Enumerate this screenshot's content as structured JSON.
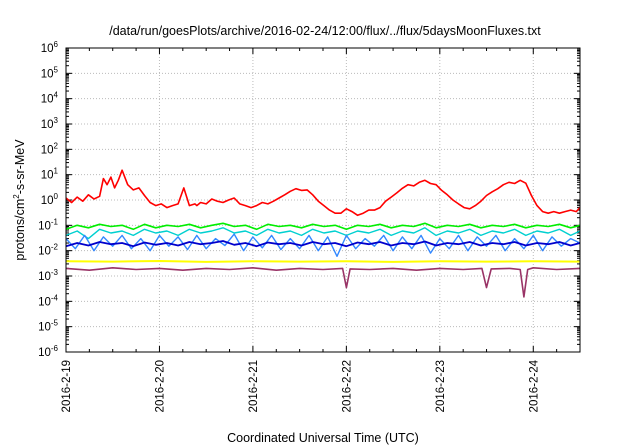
{
  "chart_data": {
    "type": "line",
    "title": "/data/run/goesPlots/archive/2016-02-24/12:00/flux/../flux/5daysMoonFluxes.txt",
    "xlabel": "Coordinated Universal Time (UTC)",
    "ylabel": {
      "prefix": "protons/cm",
      "sup": "2",
      "suffix": "-s-sr-MeV"
    },
    "yscale": "log",
    "ylim": [
      1e-06,
      1000000.0
    ],
    "y_tick_exponents": [
      -6,
      -5,
      -4,
      -3,
      -2,
      -1,
      0,
      1,
      2,
      3,
      4,
      5,
      6
    ],
    "x_range": [
      "2016-02-19T00:00",
      "2016-02-24T12:00"
    ],
    "x_tick_labels": [
      "2016-2-19",
      "2016-2-20",
      "2016-2-21",
      "2016-2-22",
      "2016-2-23",
      "2016-2-24"
    ],
    "grid": true,
    "series": [
      {
        "color": "#ff0000",
        "width": 1.6,
        "x": [
          0,
          0.06,
          0.12,
          0.18,
          0.24,
          0.3,
          0.36,
          0.4,
          0.44,
          0.48,
          0.52,
          0.56,
          0.6,
          0.66,
          0.72,
          0.78,
          0.84,
          0.9,
          0.96,
          1.02,
          1.08,
          1.14,
          1.2,
          1.26,
          1.32,
          1.38,
          1.4,
          1.44,
          1.5,
          1.56,
          1.62,
          1.68,
          1.74,
          1.8,
          1.86,
          1.92,
          1.98,
          2.04,
          2.1,
          2.16,
          2.22,
          2.28,
          2.34,
          2.4,
          2.46,
          2.52,
          2.58,
          2.64,
          2.7,
          2.76,
          2.82,
          2.88,
          2.94,
          3.0,
          3.06,
          3.12,
          3.18,
          3.24,
          3.3,
          3.36,
          3.42,
          3.48,
          3.54,
          3.6,
          3.66,
          3.72,
          3.78,
          3.84,
          3.9,
          3.96,
          4.02,
          4.08,
          4.14,
          4.2,
          4.26,
          4.32,
          4.38,
          4.44,
          4.5,
          4.56,
          4.62,
          4.68,
          4.74,
          4.8,
          4.86,
          4.92,
          4.98,
          5.04,
          5.1,
          5.16,
          5.22,
          5.28,
          5.34,
          5.4,
          5.46,
          5.5
        ],
        "y": [
          1.2,
          0.8,
          1.3,
          0.9,
          1.6,
          1.1,
          1.4,
          7,
          4,
          8,
          3,
          6,
          15,
          4,
          2.5,
          3,
          1.5,
          0.8,
          0.6,
          0.7,
          0.5,
          0.6,
          0.7,
          3,
          0.6,
          0.7,
          0.6,
          0.8,
          0.7,
          1.1,
          0.9,
          0.8,
          1.0,
          1.2,
          0.7,
          0.6,
          0.5,
          0.6,
          0.8,
          0.7,
          0.9,
          1.2,
          1.6,
          2.2,
          2.8,
          2.4,
          2.5,
          1.6,
          0.9,
          0.6,
          0.4,
          0.3,
          0.3,
          0.45,
          0.35,
          0.25,
          0.3,
          0.4,
          0.4,
          0.5,
          0.9,
          1.3,
          1.9,
          2.9,
          4,
          3.6,
          5,
          6,
          4.5,
          4.0,
          2.4,
          1.6,
          1.0,
          0.7,
          0.5,
          0.45,
          0.6,
          0.9,
          1.5,
          2.1,
          2.8,
          4,
          5,
          4.5,
          6,
          4.6,
          1.5,
          0.6,
          0.35,
          0.3,
          0.35,
          0.3,
          0.35,
          0.4,
          0.35,
          0.5
        ]
      },
      {
        "color": "#00ee00",
        "width": 1.6,
        "x": [
          0,
          0.12,
          0.24,
          0.36,
          0.48,
          0.6,
          0.72,
          0.84,
          0.96,
          1.08,
          1.2,
          1.32,
          1.44,
          1.56,
          1.68,
          1.8,
          1.92,
          2.04,
          2.16,
          2.28,
          2.4,
          2.52,
          2.64,
          2.76,
          2.88,
          3.0,
          3.12,
          3.24,
          3.36,
          3.48,
          3.6,
          3.72,
          3.84,
          3.96,
          4.08,
          4.2,
          4.32,
          4.44,
          4.56,
          4.68,
          4.8,
          4.92,
          5.04,
          5.16,
          5.28,
          5.4,
          5.5
        ],
        "y": [
          0.07,
          0.1,
          0.08,
          0.11,
          0.09,
          0.1,
          0.07,
          0.11,
          0.08,
          0.1,
          0.09,
          0.11,
          0.08,
          0.1,
          0.12,
          0.09,
          0.1,
          0.07,
          0.11,
          0.09,
          0.1,
          0.08,
          0.11,
          0.09,
          0.1,
          0.07,
          0.1,
          0.09,
          0.11,
          0.08,
          0.1,
          0.09,
          0.12,
          0.08,
          0.1,
          0.09,
          0.11,
          0.08,
          0.1,
          0.09,
          0.11,
          0.08,
          0.1,
          0.09,
          0.11,
          0.08,
          0.1
        ]
      },
      {
        "color": "#00d0d0",
        "width": 1.4,
        "x": [
          0,
          0.12,
          0.24,
          0.36,
          0.48,
          0.6,
          0.72,
          0.84,
          0.96,
          1.08,
          1.2,
          1.32,
          1.44,
          1.56,
          1.68,
          1.8,
          1.92,
          2.04,
          2.16,
          2.28,
          2.4,
          2.52,
          2.64,
          2.76,
          2.88,
          3.0,
          3.12,
          3.24,
          3.36,
          3.48,
          3.6,
          3.72,
          3.84,
          3.96,
          4.08,
          4.2,
          4.32,
          4.44,
          4.56,
          4.68,
          4.8,
          4.92,
          5.04,
          5.16,
          5.28,
          5.4,
          5.5
        ],
        "y": [
          0.04,
          0.06,
          0.03,
          0.07,
          0.05,
          0.06,
          0.04,
          0.07,
          0.05,
          0.06,
          0.04,
          0.07,
          0.05,
          0.06,
          0.08,
          0.05,
          0.06,
          0.04,
          0.07,
          0.05,
          0.06,
          0.04,
          0.07,
          0.05,
          0.06,
          0.04,
          0.06,
          0.05,
          0.07,
          0.04,
          0.06,
          0.05,
          0.08,
          0.04,
          0.06,
          0.05,
          0.07,
          0.04,
          0.06,
          0.05,
          0.07,
          0.04,
          0.06,
          0.05,
          0.07,
          0.04,
          0.06
        ]
      },
      {
        "color": "#3388ff",
        "width": 1.4,
        "x": [
          0,
          0.1,
          0.2,
          0.3,
          0.4,
          0.5,
          0.6,
          0.7,
          0.8,
          0.9,
          1.0,
          1.1,
          1.2,
          1.3,
          1.4,
          1.5,
          1.6,
          1.7,
          1.8,
          1.9,
          2.0,
          2.1,
          2.2,
          2.3,
          2.4,
          2.5,
          2.6,
          2.7,
          2.8,
          2.9,
          3.0,
          3.1,
          3.2,
          3.3,
          3.4,
          3.5,
          3.6,
          3.7,
          3.8,
          3.9,
          4.0,
          4.1,
          4.2,
          4.3,
          4.4,
          4.5,
          4.6,
          4.7,
          4.8,
          4.9,
          5.0,
          5.1,
          5.2,
          5.3,
          5.4,
          5.5
        ],
        "y": [
          0.03,
          0.012,
          0.04,
          0.01,
          0.035,
          0.015,
          0.04,
          0.012,
          0.03,
          0.01,
          0.04,
          0.015,
          0.035,
          0.011,
          0.04,
          0.012,
          0.03,
          0.016,
          0.045,
          0.01,
          0.035,
          0.013,
          0.04,
          0.011,
          0.03,
          0.012,
          0.04,
          0.01,
          0.035,
          0.006,
          0.04,
          0.012,
          0.03,
          0.015,
          0.04,
          0.01,
          0.035,
          0.012,
          0.04,
          0.008,
          0.03,
          0.012,
          0.04,
          0.01,
          0.035,
          0.015,
          0.04,
          0.01,
          0.03,
          0.012,
          0.04,
          0.01,
          0.035,
          0.015,
          0.03,
          0.02
        ]
      },
      {
        "color": "#0000cc",
        "width": 1.8,
        "x": [
          0,
          0.12,
          0.24,
          0.36,
          0.48,
          0.6,
          0.72,
          0.84,
          0.96,
          1.08,
          1.2,
          1.32,
          1.44,
          1.56,
          1.68,
          1.8,
          1.92,
          2.04,
          2.16,
          2.28,
          2.4,
          2.52,
          2.64,
          2.76,
          2.88,
          3.0,
          3.12,
          3.24,
          3.36,
          3.48,
          3.6,
          3.72,
          3.84,
          3.96,
          4.08,
          4.2,
          4.32,
          4.44,
          4.56,
          4.68,
          4.8,
          4.92,
          5.04,
          5.16,
          5.28,
          5.4,
          5.5
        ],
        "y": [
          0.015,
          0.02,
          0.016,
          0.022,
          0.018,
          0.02,
          0.015,
          0.021,
          0.017,
          0.02,
          0.016,
          0.022,
          0.018,
          0.02,
          0.024,
          0.017,
          0.02,
          0.015,
          0.021,
          0.018,
          0.02,
          0.016,
          0.022,
          0.018,
          0.02,
          0.015,
          0.021,
          0.018,
          0.022,
          0.016,
          0.02,
          0.018,
          0.023,
          0.016,
          0.02,
          0.018,
          0.022,
          0.016,
          0.02,
          0.018,
          0.022,
          0.016,
          0.02,
          0.018,
          0.022,
          0.016,
          0.02
        ]
      },
      {
        "color": "#ffff00",
        "width": 2.0,
        "x": [
          0,
          0.5,
          1.0,
          1.5,
          2.0,
          2.5,
          3.0,
          3.5,
          4.0,
          4.5,
          5.0,
          5.5
        ],
        "y": [
          0.0038,
          0.0037,
          0.0039,
          0.0036,
          0.0038,
          0.0037,
          0.0038,
          0.0036,
          0.0038,
          0.0037,
          0.0038,
          0.0037
        ]
      },
      {
        "color": "#993366",
        "width": 1.6,
        "x": [
          0,
          0.25,
          0.5,
          0.75,
          1.0,
          1.25,
          1.5,
          1.75,
          2.0,
          2.25,
          2.5,
          2.75,
          2.96,
          3.0,
          3.04,
          3.25,
          3.5,
          3.75,
          4.0,
          4.25,
          4.45,
          4.5,
          4.55,
          4.75,
          4.86,
          4.9,
          4.94,
          5.0,
          5.25,
          5.5
        ],
        "y": [
          0.002,
          0.0017,
          0.0021,
          0.0018,
          0.002,
          0.0017,
          0.002,
          0.0018,
          0.0021,
          0.0017,
          0.002,
          0.0018,
          0.002,
          0.00035,
          0.0019,
          0.0018,
          0.002,
          0.0017,
          0.002,
          0.0018,
          0.002,
          0.00035,
          0.0019,
          0.002,
          0.0018,
          0.00015,
          0.0018,
          0.0021,
          0.0018,
          0.002
        ]
      }
    ]
  }
}
